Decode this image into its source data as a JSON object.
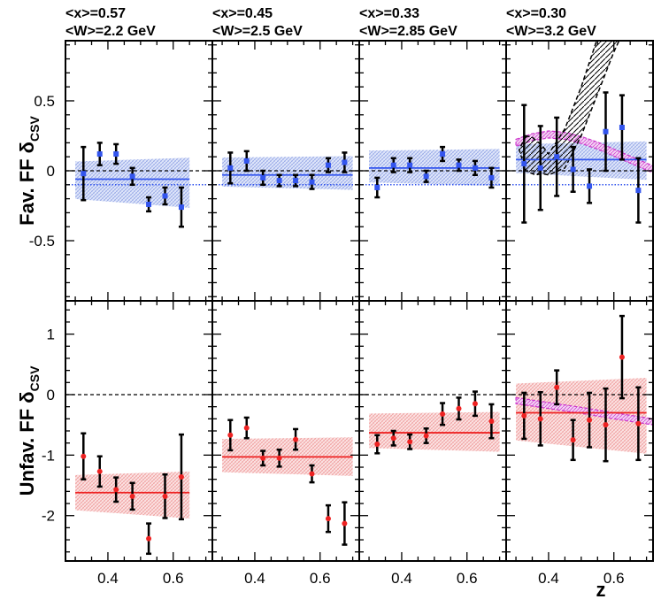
{
  "chart_data": {
    "type": "scatter",
    "xlabel": "z",
    "x_tick_labels": [
      "0.4",
      "0.6"
    ],
    "x_ticks": [
      0.4,
      0.6
    ],
    "xlim": [
      0.27,
      0.72
    ],
    "panel_headers": [
      {
        "x": "<x>=0.57",
        "w": "<W>=2.2 GeV"
      },
      {
        "x": "<x>=0.45",
        "w": "<W>=2.5 GeV"
      },
      {
        "x": "<x>=0.33",
        "w": "<W>=2.85 GeV"
      },
      {
        "x": "<x>=0.30",
        "w": "<W>=3.2 GeV"
      }
    ],
    "rows": [
      {
        "name": "fav",
        "ylabel_main": "Fav. FF δ",
        "ylabel_sub": "CSV",
        "ylim": [
          -0.93,
          0.93
        ],
        "y_ticks": [
          0.5,
          0,
          -0.5
        ],
        "y_tick_labels": [
          "0.5",
          "0",
          "-0.5"
        ],
        "reference_line": -0.1,
        "color": "#3355ee",
        "panels": [
          {
            "x": [
              0.325,
              0.375,
              0.425,
              0.475,
              0.525,
              0.575,
              0.625
            ],
            "y": [
              -0.02,
              0.12,
              0.12,
              -0.04,
              -0.24,
              -0.18,
              -0.26
            ],
            "err": [
              0.19,
              0.08,
              0.07,
              0.06,
              0.05,
              0.06,
              0.14
            ],
            "fit": -0.06,
            "band": [
              0.3,
              0.65,
              -0.22,
              0.08
            ]
          },
          {
            "x": [
              0.325,
              0.375,
              0.425,
              0.475,
              0.525,
              0.575,
              0.625,
              0.675
            ],
            "y": [
              0.02,
              0.07,
              -0.05,
              -0.07,
              -0.07,
              -0.08,
              0.04,
              0.06
            ],
            "err": [
              0.11,
              0.07,
              0.05,
              0.04,
              0.04,
              0.05,
              0.05,
              0.07
            ],
            "fit": -0.03,
            "band": [
              0.3,
              0.7,
              -0.12,
              0.1
            ]
          },
          {
            "x": [
              0.325,
              0.375,
              0.425,
              0.475,
              0.525,
              0.575,
              0.625,
              0.675
            ],
            "y": [
              -0.12,
              0.04,
              0.04,
              -0.04,
              0.12,
              0.04,
              0.02,
              -0.05
            ],
            "err": [
              0.07,
              0.05,
              0.05,
              0.04,
              0.05,
              0.04,
              0.05,
              0.07
            ],
            "fit": 0.02,
            "band": [
              0.3,
              0.7,
              -0.09,
              0.15
            ]
          },
          {
            "x": [
              0.325,
              0.375,
              0.425,
              0.475,
              0.525,
              0.575,
              0.625,
              0.675
            ],
            "y": [
              0.05,
              0.02,
              0.1,
              0.01,
              -0.11,
              0.28,
              0.31,
              -0.14
            ],
            "err": [
              0.42,
              0.3,
              0.28,
              0.16,
              0.12,
              0.28,
              0.23,
              0.23
            ],
            "fit": 0.08,
            "band": [
              0.3,
              0.7,
              -0.03,
              0.2
            ]
          }
        ]
      },
      {
        "name": "unfav",
        "ylabel_main": "Unfav. FF δ",
        "ylabel_sub": "CSV",
        "ylim": [
          -2.75,
          1.55
        ],
        "y_ticks": [
          1,
          0,
          -1,
          -2
        ],
        "y_tick_labels": [
          "1",
          "0",
          "-1",
          "-2"
        ],
        "reference_line": null,
        "color": "#ee2222",
        "panels": [
          {
            "x": [
              0.325,
              0.375,
              0.425,
              0.475,
              0.525,
              0.575,
              0.625
            ],
            "y": [
              -1.02,
              -1.27,
              -1.57,
              -1.68,
              -2.38,
              -1.68,
              -1.36
            ],
            "err": [
              0.38,
              0.25,
              0.2,
              0.22,
              0.25,
              0.36,
              0.7
            ],
            "fit": -1.62,
            "band": [
              0.3,
              0.65,
              -1.95,
              -1.3
            ]
          },
          {
            "x": [
              0.325,
              0.375,
              0.425,
              0.475,
              0.525,
              0.575,
              0.625,
              0.675
            ],
            "y": [
              -0.67,
              -0.55,
              -1.05,
              -1.05,
              -0.74,
              -1.31,
              -2.05,
              -2.13
            ],
            "err": [
              0.25,
              0.17,
              0.12,
              0.14,
              0.17,
              0.14,
              0.22,
              0.35
            ],
            "fit": -1.03,
            "band": [
              0.3,
              0.7,
              -1.3,
              -0.72
            ]
          },
          {
            "x": [
              0.325,
              0.375,
              0.425,
              0.475,
              0.525,
              0.575,
              0.625,
              0.675
            ],
            "y": [
              -0.82,
              -0.72,
              -0.78,
              -0.68,
              -0.32,
              -0.23,
              -0.15,
              -0.44
            ],
            "err": [
              0.15,
              0.12,
              0.12,
              0.12,
              0.18,
              0.18,
              0.2,
              0.28
            ],
            "fit": -0.63,
            "band": [
              0.3,
              0.7,
              -0.9,
              -0.3
            ]
          },
          {
            "x": [
              0.325,
              0.375,
              0.425,
              0.475,
              0.525,
              0.575,
              0.625,
              0.675
            ],
            "y": [
              -0.35,
              -0.4,
              0.12,
              -0.75,
              -0.42,
              -0.5,
              0.62,
              -0.48
            ],
            "err": [
              0.38,
              0.44,
              0.28,
              0.33,
              0.45,
              0.6,
              0.68,
              0.6
            ],
            "fit": -0.3,
            "band": [
              0.3,
              0.7,
              -0.82,
              0.23
            ]
          }
        ]
      }
    ],
    "model_curves": {
      "hatched_band_panel": 4,
      "magenta_line_fav": {
        "x": [
          0.3,
          0.35,
          0.4,
          0.45,
          0.5,
          0.55,
          0.6,
          0.65,
          0.72
        ],
        "y": [
          0.2,
          0.24,
          0.26,
          0.25,
          0.22,
          0.18,
          0.13,
          0.08,
          0.01
        ]
      },
      "magenta_line_unfav": {
        "x": [
          0.3,
          0.4,
          0.5,
          0.6,
          0.72
        ],
        "y": [
          -0.1,
          -0.18,
          -0.26,
          -0.35,
          -0.45
        ]
      },
      "black_hatched_band": {
        "x": [
          0.38,
          0.4,
          0.45,
          0.5,
          0.55,
          0.6,
          0.65
        ],
        "lower": [
          -0.02,
          -0.03,
          0.02,
          0.25,
          0.55,
          0.85,
          1.1
        ],
        "upper": [
          0.18,
          0.12,
          0.3,
          0.6,
          0.95,
          1.2,
          1.4
        ]
      }
    },
    "colors": {
      "fav_band": "#aabbee",
      "unfav_band": "#f0a0a0",
      "magenta": "#cc33cc",
      "data_point_bar": "#000000"
    }
  }
}
